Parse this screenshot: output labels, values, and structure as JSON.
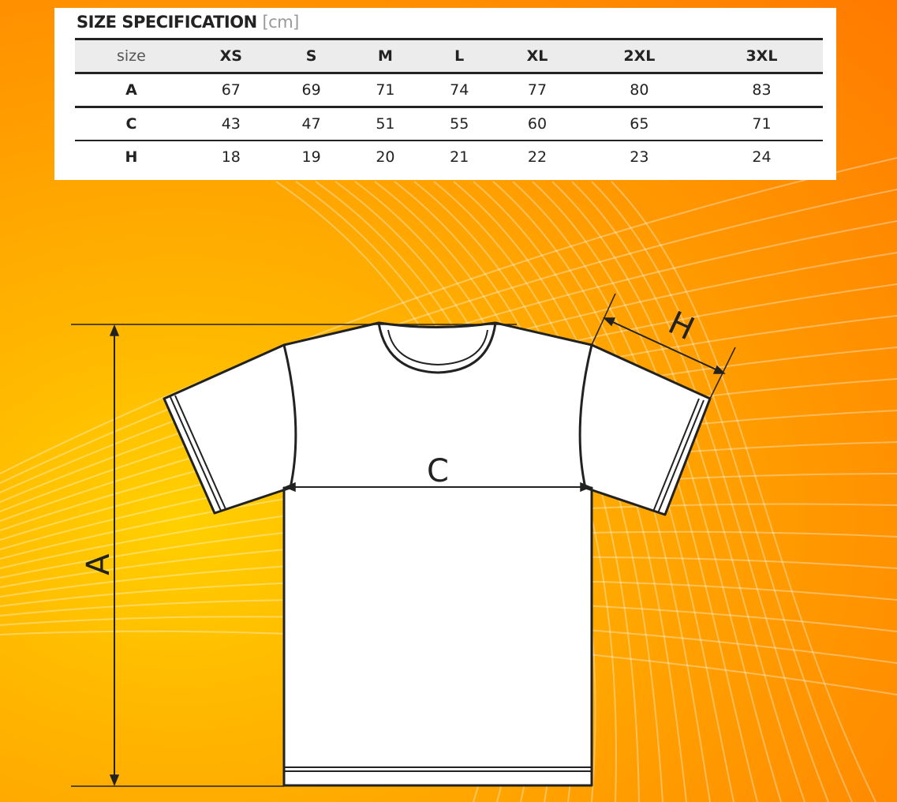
{
  "title": "SIZE SPECIFICATION",
  "unit": "[cm]",
  "table": {
    "headers": [
      "size",
      "XS",
      "S",
      "M",
      "L",
      "XL",
      "2XL",
      "3XL"
    ],
    "rows": [
      [
        "A",
        "67",
        "69",
        "71",
        "74",
        "77",
        "80",
        "83"
      ],
      [
        "C",
        "43",
        "47",
        "51",
        "55",
        "60",
        "65",
        "71"
      ],
      [
        "H",
        "18",
        "19",
        "20",
        "21",
        "22",
        "23",
        "24"
      ]
    ]
  },
  "diagram": {
    "label_a": "A",
    "label_c": "C",
    "label_h": "H"
  },
  "colors": {
    "background": "#ff9a00",
    "line": "#222222"
  }
}
